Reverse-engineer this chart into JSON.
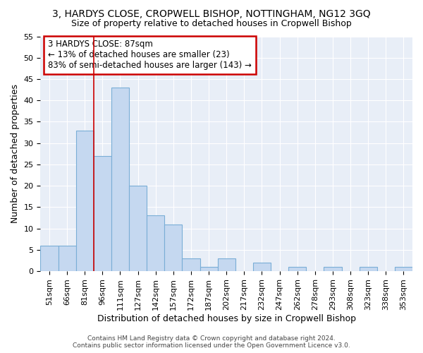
{
  "title1": "3, HARDYS CLOSE, CROPWELL BISHOP, NOTTINGHAM, NG12 3GQ",
  "title2": "Size of property relative to detached houses in Cropwell Bishop",
  "xlabel": "Distribution of detached houses by size in Cropwell Bishop",
  "ylabel": "Number of detached properties",
  "categories": [
    "51sqm",
    "66sqm",
    "81sqm",
    "96sqm",
    "111sqm",
    "127sqm",
    "142sqm",
    "157sqm",
    "172sqm",
    "187sqm",
    "202sqm",
    "217sqm",
    "232sqm",
    "247sqm",
    "262sqm",
    "278sqm",
    "293sqm",
    "308sqm",
    "323sqm",
    "338sqm",
    "353sqm"
  ],
  "values": [
    6,
    6,
    33,
    27,
    43,
    20,
    13,
    11,
    3,
    1,
    3,
    0,
    2,
    0,
    1,
    0,
    1,
    0,
    1,
    0,
    1
  ],
  "bar_color": "#c5d8f0",
  "bar_edge_color": "#7aaed6",
  "vline_x": 2.5,
  "vline_color": "#cc0000",
  "annotation_line1": "3 HARDYS CLOSE: 87sqm",
  "annotation_line2": "← 13% of detached houses are smaller (23)",
  "annotation_line3": "83% of semi-detached houses are larger (143) →",
  "annotation_box_color": "#ffffff",
  "annotation_box_edgecolor": "#cc0000",
  "ylim": [
    0,
    55
  ],
  "yticks": [
    0,
    5,
    10,
    15,
    20,
    25,
    30,
    35,
    40,
    45,
    50,
    55
  ],
  "footer1": "Contains HM Land Registry data © Crown copyright and database right 2024.",
  "footer2": "Contains public sector information licensed under the Open Government Licence v3.0.",
  "plot_bg_color": "#e8eef7",
  "grid_color": "#ffffff",
  "title1_fontsize": 10,
  "title2_fontsize": 9,
  "tick_fontsize": 8,
  "ylabel_fontsize": 9,
  "xlabel_fontsize": 9,
  "ann_fontsize": 8.5,
  "footer_fontsize": 6.5
}
